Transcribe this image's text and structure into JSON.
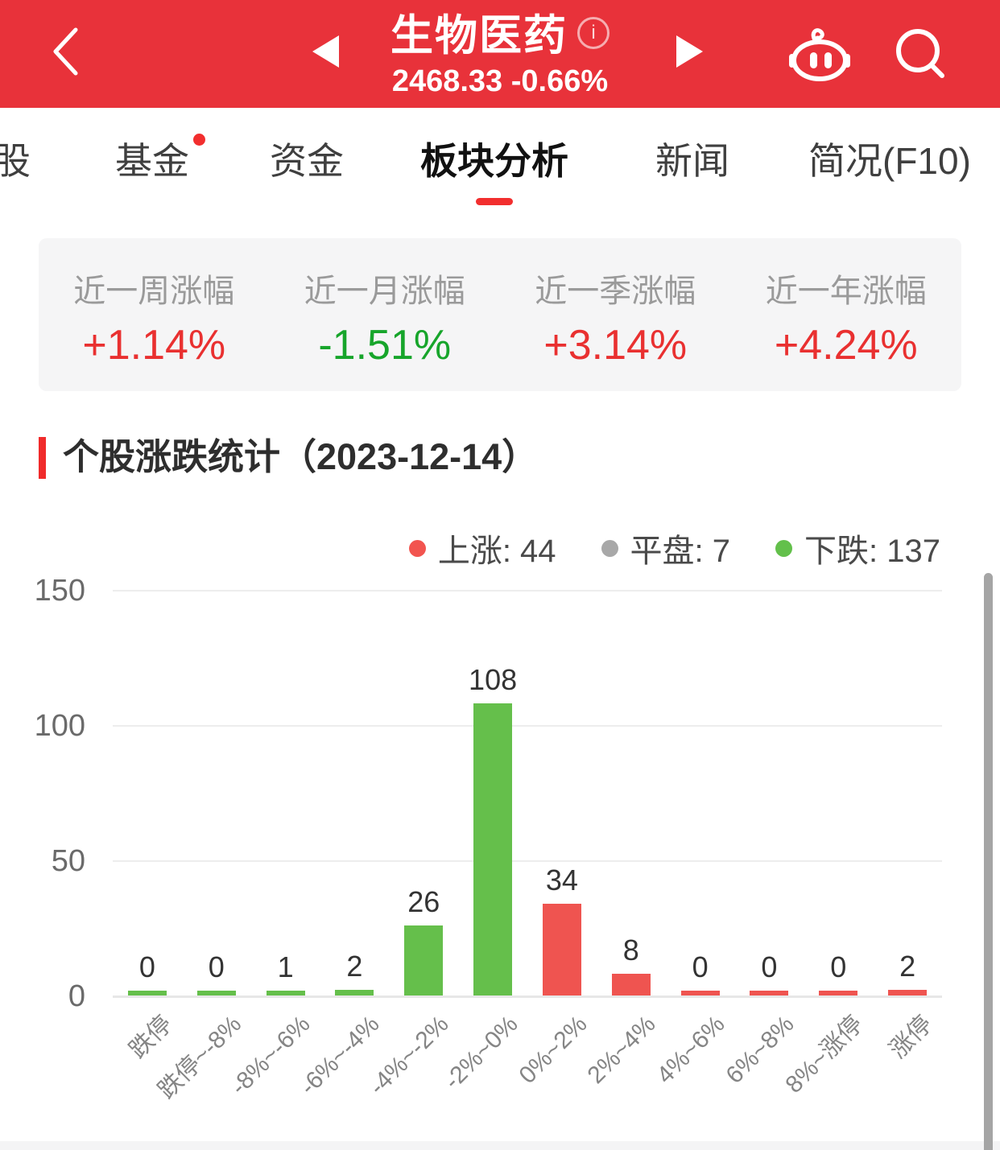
{
  "header": {
    "title": "生物医药",
    "subtitle": "2468.33 -0.66%",
    "info_icon_glyph": "i",
    "bg_color": "#e8323a"
  },
  "tabbar": {
    "tabs": [
      {
        "label": "股",
        "active": false,
        "badge": false
      },
      {
        "label": "基金",
        "active": false,
        "badge": true
      },
      {
        "label": "资金",
        "active": false,
        "badge": false
      },
      {
        "label": "板块分析",
        "active": true,
        "badge": false
      },
      {
        "label": "新闻",
        "active": false,
        "badge": false
      },
      {
        "label": "简况(F10)",
        "active": false,
        "badge": false
      }
    ]
  },
  "stats": {
    "items": [
      {
        "label": "近一周涨幅",
        "value": "+1.14%",
        "direction": "up"
      },
      {
        "label": "近一月涨幅",
        "value": "-1.51%",
        "direction": "down"
      },
      {
        "label": "近一季涨幅",
        "value": "+3.14%",
        "direction": "up"
      },
      {
        "label": "近一年涨幅",
        "value": "+4.24%",
        "direction": "up"
      }
    ]
  },
  "section": {
    "title": "个股涨跌统计（2023-12-14）"
  },
  "legend": {
    "separator": ": ",
    "items": [
      {
        "label": "上涨",
        "value": "44",
        "color": "#f2544f"
      },
      {
        "label": "平盘",
        "value": "7",
        "color": "#a8a8a8"
      },
      {
        "label": "下跌",
        "value": "137",
        "color": "#63c04b"
      }
    ]
  },
  "chart_data": {
    "type": "bar",
    "title": "个股涨跌统计（2023-12-14）",
    "categories": [
      "跌停",
      "跌停~-8%",
      "-8%~-6%",
      "-6%~-4%",
      "-4%~-2%",
      "-2%~0%",
      "0%~2%",
      "2%~4%",
      "4%~6%",
      "6%~8%",
      "8%~涨停",
      "涨停"
    ],
    "values": [
      0,
      0,
      1,
      2,
      26,
      108,
      34,
      8,
      0,
      0,
      0,
      2
    ],
    "bar_directions": [
      "down",
      "down",
      "down",
      "down",
      "down",
      "down",
      "up",
      "up",
      "up",
      "up",
      "up",
      "up"
    ],
    "colors": {
      "up": "#ef5450",
      "down": "#65bf4b"
    },
    "yticks": [
      0,
      50,
      100,
      150
    ],
    "ylim": [
      0,
      150
    ],
    "grid": "horizontal",
    "legend_position": "top-right",
    "x_label_rotation": 45,
    "counts": {
      "up": 44,
      "flat": 7,
      "down": 137
    }
  }
}
